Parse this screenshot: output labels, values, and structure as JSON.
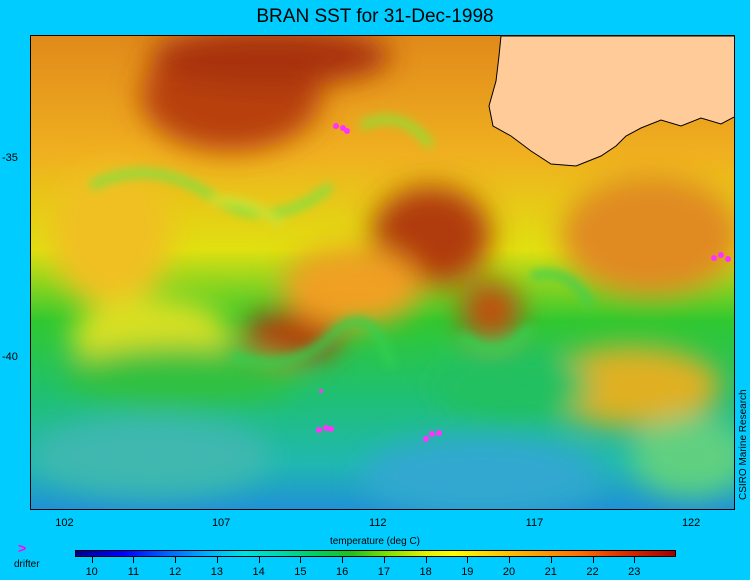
{
  "title": "BRAN SST for 31-Dec-1998",
  "credit": "CSIRO Marine Research",
  "map": {
    "x_ticks": [
      "102",
      "107",
      "112",
      "117",
      "122"
    ],
    "x_tick_values": [
      102,
      107,
      112,
      117,
      122
    ],
    "x_range": [
      100.9,
      123.4
    ],
    "y_ticks": [
      "-35",
      "-40"
    ],
    "y_tick_values": [
      -35,
      -40
    ],
    "y_range": [
      -43.8,
      -31.9
    ],
    "land_color": "#ffcc99",
    "drifter_color": "#ff33ff"
  },
  "colorbar": {
    "label": "temperature (deg C)",
    "ticks": [
      "10",
      "11",
      "12",
      "13",
      "14",
      "15",
      "16",
      "17",
      "18",
      "19",
      "20",
      "21",
      "22",
      "23"
    ],
    "tick_values": [
      10,
      11,
      12,
      13,
      14,
      15,
      16,
      17,
      18,
      19,
      20,
      21,
      22,
      23
    ],
    "range": [
      9.6,
      24.0
    ]
  },
  "legend": {
    "drifter_label": "drifter",
    "drifter_icon": "chevron-right-icon"
  }
}
